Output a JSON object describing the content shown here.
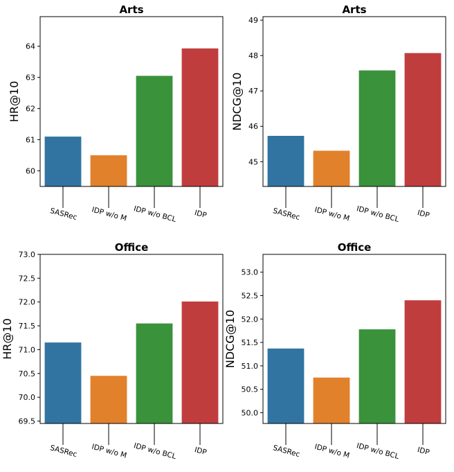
{
  "colors": {
    "SASRec": "#3274a1",
    "IDP w/o M": "#e1812c",
    "IDP w/o BCL": "#3a923a",
    "IDP": "#c03d3e"
  },
  "chart_data": [
    {
      "type": "bar",
      "title": "Arts",
      "xlabel": "",
      "ylabel": "HR@10",
      "categories": [
        "SASRec",
        "IDP w/o M",
        "IDP w/o BCL",
        "IDP"
      ],
      "values": [
        61.1,
        60.5,
        63.05,
        63.93
      ],
      "ylim": [
        59.5,
        64.95
      ],
      "yticks": [
        60,
        61,
        62,
        63,
        64
      ],
      "ytick_labels": [
        "60",
        "61",
        "62",
        "63",
        "64"
      ]
    },
    {
      "type": "bar",
      "title": "Arts",
      "xlabel": "",
      "ylabel": "NDCG@10",
      "categories": [
        "SASRec",
        "IDP w/o M",
        "IDP w/o BCL",
        "IDP"
      ],
      "values": [
        45.73,
        45.31,
        47.58,
        48.07
      ],
      "ylim": [
        44.3,
        49.1
      ],
      "yticks": [
        45,
        46,
        47,
        48,
        49
      ],
      "ytick_labels": [
        "45",
        "46",
        "47",
        "48",
        "49"
      ]
    },
    {
      "type": "bar",
      "title": "Office",
      "xlabel": "",
      "ylabel": "HR@10",
      "categories": [
        "SASRec",
        "IDP w/o M",
        "IDP w/o BCL",
        "IDP"
      ],
      "values": [
        71.15,
        70.45,
        71.55,
        72.01
      ],
      "ylim": [
        69.45,
        73.0
      ],
      "yticks": [
        69.5,
        70.0,
        70.5,
        71.0,
        71.5,
        72.0,
        72.5,
        73.0
      ],
      "ytick_labels": [
        "69.5",
        "70.0",
        "70.5",
        "71.0",
        "71.5",
        "72.0",
        "72.5",
        "73.0"
      ]
    },
    {
      "type": "bar",
      "title": "Office",
      "xlabel": "",
      "ylabel": "NDCG@10",
      "categories": [
        "SASRec",
        "IDP w/o M",
        "IDP w/o BCL",
        "IDP"
      ],
      "values": [
        51.37,
        50.75,
        51.78,
        52.4
      ],
      "ylim": [
        49.77,
        53.38
      ],
      "yticks": [
        50.0,
        50.5,
        51.0,
        51.5,
        52.0,
        52.5,
        53.0
      ],
      "ytick_labels": [
        "50.0",
        "50.5",
        "51.0",
        "51.5",
        "52.0",
        "52.5",
        "53.0"
      ]
    }
  ]
}
